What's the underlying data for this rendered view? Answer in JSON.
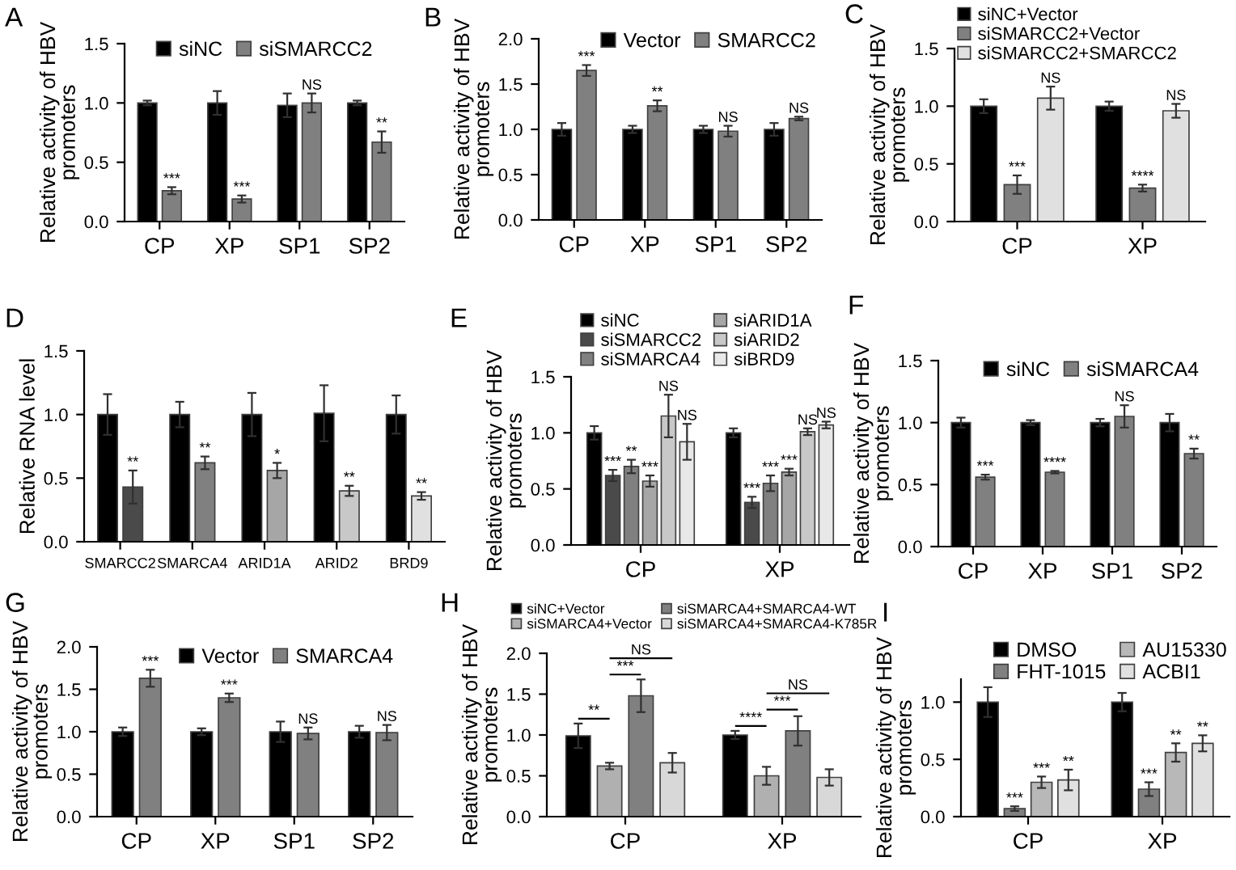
{
  "chart_data": [
    {
      "type": "bar",
      "title": "A",
      "ylabel": "Relative activity of HBV\npromoters",
      "categories": [
        "CP",
        "XP",
        "SP1",
        "SP2"
      ],
      "ylim": [
        0,
        1.5
      ],
      "yticks": [
        {
          "value": 0,
          "label": "0.0"
        },
        {
          "value": 0.5,
          "label": "0.5"
        },
        {
          "value": 1,
          "label": "1.0"
        },
        {
          "value": 1.5,
          "label": "1.5"
        }
      ],
      "legend": "top",
      "series": [
        {
          "name": "siNC",
          "color": "#000000",
          "values": [
            1.0,
            1.0,
            0.98,
            1.0
          ],
          "errors": [
            0.02,
            0.1,
            0.1,
            0.02
          ]
        },
        {
          "name": "siSMARCC2",
          "color": "#808080",
          "values": [
            0.26,
            0.19,
            1.0,
            0.67
          ],
          "errors": [
            0.03,
            0.03,
            0.08,
            0.09
          ],
          "value_labels": [
            "***",
            "***",
            "NS",
            "**"
          ]
        }
      ]
    },
    {
      "type": "bar",
      "title": "B",
      "ylabel": "Relative activity of HBV\npromoters",
      "categories": [
        "CP",
        "XP",
        "SP1",
        "SP2"
      ],
      "ylim": [
        0,
        2
      ],
      "yticks": [
        {
          "value": 0,
          "label": "0.0"
        },
        {
          "value": 0.5,
          "label": "0.5"
        },
        {
          "value": 1,
          "label": "1.0"
        },
        {
          "value": 1.5,
          "label": "1.5"
        },
        {
          "value": 2,
          "label": "2.0"
        }
      ],
      "legend": "top",
      "series": [
        {
          "name": "Vector",
          "color": "#000000",
          "values": [
            1.0,
            1.0,
            1.0,
            1.0
          ],
          "errors": [
            0.07,
            0.04,
            0.04,
            0.07
          ]
        },
        {
          "name": "SMARCC2",
          "color": "#808080",
          "values": [
            1.65,
            1.26,
            0.98,
            1.12
          ],
          "errors": [
            0.06,
            0.06,
            0.06,
            0.02
          ],
          "value_labels": [
            "***",
            "**",
            "NS",
            "NS"
          ]
        }
      ]
    },
    {
      "type": "bar",
      "title": "C",
      "ylabel": "Relative activity of HBV\npromoters",
      "categories": [
        "CP",
        "XP"
      ],
      "ylim": [
        0,
        1.5
      ],
      "yticks": [
        {
          "value": 0,
          "label": "0.0"
        },
        {
          "value": 0.5,
          "label": "0.5"
        },
        {
          "value": 1,
          "label": "1.0"
        },
        {
          "value": 1.5,
          "label": "1.5"
        }
      ],
      "legend": "top",
      "series": [
        {
          "name": "siNC+Vector",
          "color": "#000000",
          "values": [
            1.0,
            1.0
          ],
          "errors": [
            0.06,
            0.04
          ]
        },
        {
          "name": "siSMARCC2+Vector",
          "color": "#808080",
          "values": [
            0.32,
            0.29
          ],
          "errors": [
            0.08,
            0.03
          ],
          "value_labels": [
            "***",
            "****"
          ]
        },
        {
          "name": "siSMARCC2+SMARCC2",
          "color": "#e0e0e0",
          "values": [
            1.07,
            0.96
          ],
          "errors": [
            0.1,
            0.06
          ],
          "value_labels": [
            "NS",
            "NS"
          ]
        }
      ]
    },
    {
      "type": "bar",
      "title": "D",
      "ylabel": "Relative RNA level",
      "categories": [
        "SMARCC2",
        "SMARCA4",
        "ARID1A",
        "ARID2",
        "BRD9"
      ],
      "ylim": [
        0,
        1.5
      ],
      "yticks": [
        {
          "value": 0,
          "label": "0.0"
        },
        {
          "value": 0.5,
          "label": "0.5"
        },
        {
          "value": 1,
          "label": "1.0"
        },
        {
          "value": 1.5,
          "label": "1.5"
        }
      ],
      "series": [
        {
          "color": "#000000",
          "values": [
            1.0,
            1.0,
            1.0,
            1.01,
            1.0
          ],
          "errors": [
            0.16,
            0.1,
            0.17,
            0.22,
            0.15
          ]
        },
        {
          "colors": [
            "#4a4a4a",
            "#808080",
            "#a6a6a6",
            "#c8c8c8",
            "#e0e0e0"
          ],
          "values": [
            0.43,
            0.62,
            0.56,
            0.4,
            0.36
          ],
          "errors": [
            0.13,
            0.05,
            0.06,
            0.04,
            0.03
          ],
          "value_labels": [
            "**",
            "**",
            "*",
            "**",
            "**"
          ]
        }
      ]
    },
    {
      "type": "bar",
      "title": "E",
      "ylabel": "Relative activity of HBV\npromoters",
      "categories": [
        "CP",
        "XP"
      ],
      "ylim": [
        0,
        1.5
      ],
      "yticks": [
        {
          "value": 0,
          "label": "0.0"
        },
        {
          "value": 0.5,
          "label": "0.5"
        },
        {
          "value": 1,
          "label": "1.0"
        },
        {
          "value": 1.5,
          "label": "1.5"
        }
      ],
      "legend": "top",
      "series": [
        {
          "name": "siNC",
          "color": "#000000",
          "values": [
            1.0,
            1.0
          ],
          "errors": [
            0.06,
            0.04
          ]
        },
        {
          "name": "siSMARCC2",
          "color": "#4a4a4a",
          "values": [
            0.62,
            0.38
          ],
          "errors": [
            0.05,
            0.05
          ],
          "value_labels": [
            "***",
            "***"
          ]
        },
        {
          "name": "siSMARCA4",
          "color": "#808080",
          "values": [
            0.7,
            0.55
          ],
          "errors": [
            0.06,
            0.07
          ],
          "value_labels": [
            "**",
            "***"
          ]
        },
        {
          "name": "siARID1A",
          "color": "#a6a6a6",
          "values": [
            0.57,
            0.65
          ],
          "errors": [
            0.05,
            0.03
          ],
          "value_labels": [
            "***",
            "***"
          ]
        },
        {
          "name": "siARID2",
          "color": "#c8c8c8",
          "values": [
            1.15,
            1.01
          ],
          "errors": [
            0.19,
            0.03
          ],
          "value_labels": [
            "NS",
            "NS"
          ]
        },
        {
          "name": "siBRD9",
          "color": "#e8e8e8",
          "values": [
            0.92,
            1.07
          ],
          "errors": [
            0.16,
            0.03
          ],
          "value_labels": [
            "NS",
            "NS"
          ]
        }
      ]
    },
    {
      "type": "bar",
      "title": "F",
      "ylabel": "Relative activity of HBV\npromoters",
      "categories": [
        "CP",
        "XP",
        "SP1",
        "SP2"
      ],
      "ylim": [
        0,
        1.5
      ],
      "yticks": [
        {
          "value": 0,
          "label": "0.0"
        },
        {
          "value": 0.5,
          "label": "0.5"
        },
        {
          "value": 1,
          "label": "1.0"
        },
        {
          "value": 1.5,
          "label": "1.5"
        }
      ],
      "legend": "top",
      "series": [
        {
          "name": "siNC",
          "color": "#000000",
          "values": [
            1.0,
            1.0,
            1.0,
            1.0
          ],
          "errors": [
            0.04,
            0.02,
            0.03,
            0.07
          ]
        },
        {
          "name": "siSMARCA4",
          "color": "#808080",
          "values": [
            0.56,
            0.6,
            1.05,
            0.75
          ],
          "errors": [
            0.02,
            0.01,
            0.09,
            0.04
          ],
          "value_labels": [
            "***",
            "****",
            "NS",
            "**"
          ]
        }
      ]
    },
    {
      "type": "bar",
      "title": "G",
      "ylabel": "Relative activity of HBV\npromoters",
      "categories": [
        "CP",
        "XP",
        "SP1",
        "SP2"
      ],
      "ylim": [
        0,
        2
      ],
      "yticks": [
        {
          "value": 0,
          "label": "0.0"
        },
        {
          "value": 0.5,
          "label": "0.5"
        },
        {
          "value": 1,
          "label": "1.0"
        },
        {
          "value": 1.5,
          "label": "1.5"
        },
        {
          "value": 2,
          "label": "2.0"
        }
      ],
      "legend": "top",
      "series": [
        {
          "name": "Vector",
          "color": "#000000",
          "values": [
            1.0,
            1.0,
            1.0,
            1.0
          ],
          "errors": [
            0.05,
            0.04,
            0.12,
            0.07
          ]
        },
        {
          "name": "SMARCA4",
          "color": "#808080",
          "values": [
            1.63,
            1.4,
            0.98,
            0.99
          ],
          "errors": [
            0.1,
            0.05,
            0.07,
            0.09
          ],
          "value_labels": [
            "***",
            "***",
            "NS",
            "NS"
          ]
        }
      ]
    },
    {
      "type": "bar",
      "title": "H",
      "ylabel": "Relative activity of HBV\npromoters",
      "categories": [
        "CP",
        "XP"
      ],
      "ylim": [
        0,
        2
      ],
      "yticks": [
        {
          "value": 0,
          "label": "0.0"
        },
        {
          "value": 0.5,
          "label": "0.5"
        },
        {
          "value": 1,
          "label": "1.0"
        },
        {
          "value": 1.5,
          "label": "1.5"
        },
        {
          "value": 2,
          "label": "2.0"
        }
      ],
      "legend": "top",
      "series": [
        {
          "name": "siNC+Vector",
          "color": "#000000",
          "values": [
            0.99,
            1.0
          ],
          "errors": [
            0.15,
            0.05
          ]
        },
        {
          "name": "siSMARCA4+Vector",
          "color": "#b0b0b0",
          "values": [
            0.62,
            0.5
          ],
          "errors": [
            0.04,
            0.11
          ]
        },
        {
          "name": "siSMARCA4+SMARCA4-WT",
          "color": "#808080",
          "values": [
            1.48,
            1.05
          ],
          "errors": [
            0.2,
            0.18
          ]
        },
        {
          "name": "siSMARCA4+SMARCA4-K785R",
          "color": "#d8d8d8",
          "values": [
            0.66,
            0.48
          ],
          "errors": [
            0.12,
            0.1
          ]
        }
      ],
      "annotations": [
        "**",
        "***",
        "NS",
        "****",
        "***",
        "NS"
      ]
    },
    {
      "type": "bar",
      "title": "I",
      "ylabel": "Relative activity of HBV\npromoters",
      "categories": [
        "CP",
        "XP"
      ],
      "ylim": [
        0,
        1.2
      ],
      "yticks": [
        {
          "value": 0,
          "label": "0.0"
        },
        {
          "value": 0.5,
          "label": "0.5"
        },
        {
          "value": 1,
          "label": "1.0"
        }
      ],
      "legend": "top right",
      "series": [
        {
          "name": "DMSO",
          "color": "#000000",
          "values": [
            1.0,
            1.0
          ],
          "errors": [
            0.13,
            0.08
          ]
        },
        {
          "name": "FHT-1015",
          "color": "#808080",
          "values": [
            0.07,
            0.24
          ],
          "errors": [
            0.02,
            0.06
          ],
          "value_labels": [
            "***",
            "***"
          ]
        },
        {
          "name": "AU15330",
          "color": "#b8b8b8",
          "values": [
            0.3,
            0.56
          ],
          "errors": [
            0.05,
            0.08
          ],
          "value_labels": [
            "***",
            "**"
          ]
        },
        {
          "name": "ACBI1",
          "color": "#e0e0e0",
          "values": [
            0.32,
            0.64
          ],
          "errors": [
            0.09,
            0.07
          ],
          "value_labels": [
            "**",
            "**"
          ]
        }
      ]
    }
  ]
}
